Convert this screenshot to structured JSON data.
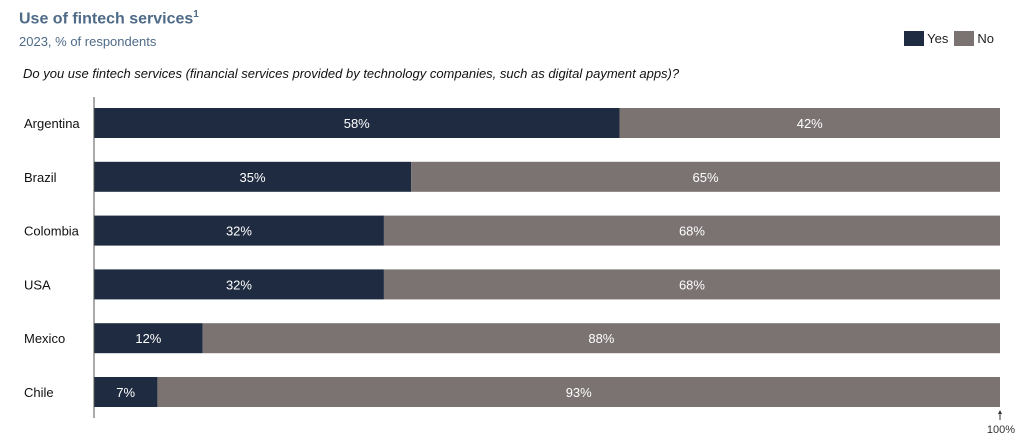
{
  "colors": {
    "yes": "#1f2b40",
    "no": "#7a7372",
    "title": "#4f6b88"
  },
  "chart_data": {
    "type": "bar",
    "orientation": "horizontal",
    "stacked": true,
    "title": "Use of fintech services",
    "title_footnote": "1",
    "subtitle": "2023, % of respondents",
    "question": "Do you use fintech services (financial services provided by technology companies, such as digital payment apps)?",
    "categories": [
      "Argentina",
      "Brazil",
      "Colombia",
      "USA",
      "Mexico",
      "Chile"
    ],
    "series": [
      {
        "name": "Yes",
        "values": [
          58,
          35,
          32,
          32,
          12,
          7
        ],
        "labels": [
          "58%",
          "35%",
          "32%",
          "32%",
          "12%",
          "7%"
        ]
      },
      {
        "name": "No",
        "values": [
          42,
          65,
          68,
          68,
          88,
          93
        ],
        "labels": [
          "42%",
          "65%",
          "68%",
          "68%",
          "88%",
          "93%"
        ]
      }
    ],
    "xlim": [
      0,
      100
    ],
    "end_marker": "100%",
    "legend": "top-right",
    "grid": false
  }
}
